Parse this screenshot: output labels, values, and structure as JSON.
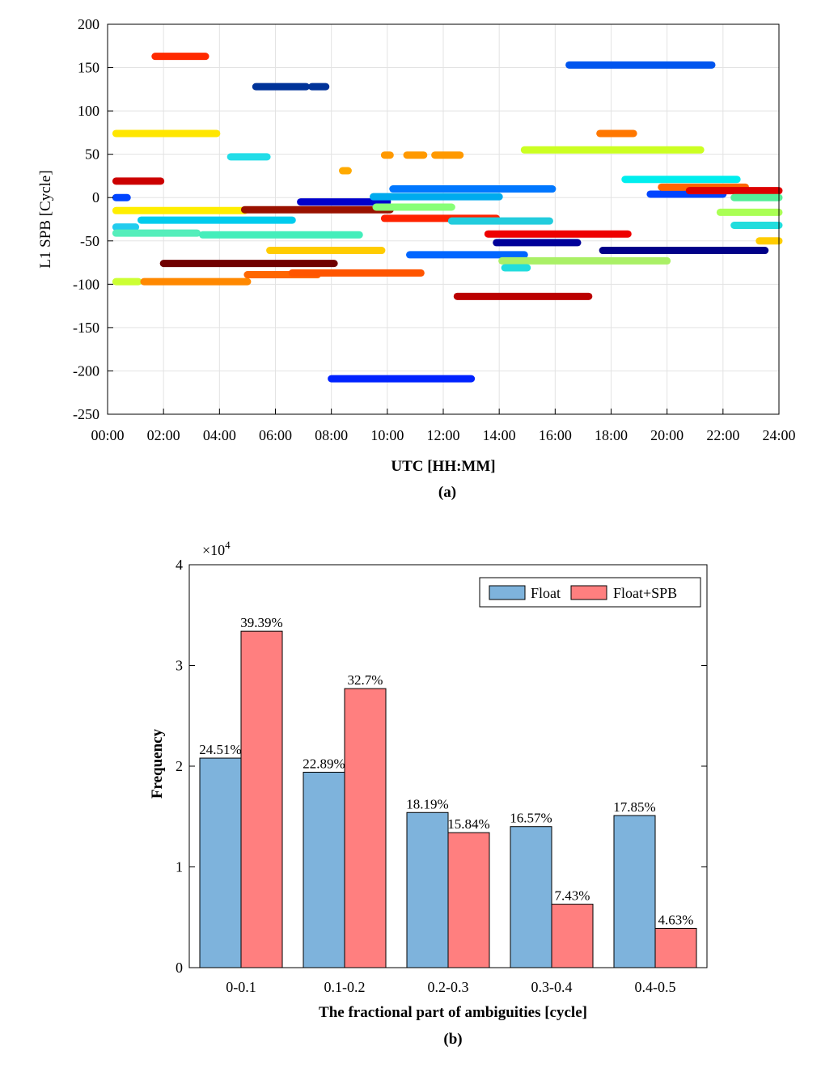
{
  "chart_data": [
    {
      "type": "line",
      "subplot_label": "(a)",
      "xlabel": "UTC [HH:MM]",
      "ylabel": "L1 SPB [Cycle]",
      "xlim": [
        0,
        24
      ],
      "ylim": [
        -250,
        200
      ],
      "x_ticks": [
        "00:00",
        "02:00",
        "04:00",
        "06:00",
        "08:00",
        "10:00",
        "12:00",
        "14:00",
        "16:00",
        "18:00",
        "20:00",
        "22:00",
        "24:00"
      ],
      "y_ticks": [
        "200",
        "150",
        "100",
        "50",
        "0",
        "-50",
        "-100",
        "-150",
        "-200",
        "-250"
      ],
      "grid": true,
      "x_unit": "hours UTC",
      "series": [
        {
          "color": "#ff2a00",
          "segments": [
            [
              1.7,
              3.5,
              163
            ]
          ]
        },
        {
          "color": "#003399",
          "segments": [
            [
              5.3,
              7.1,
              128
            ],
            [
              7.3,
              7.8,
              128
            ]
          ]
        },
        {
          "color": "#ffe600",
          "segments": [
            [
              0.3,
              3.9,
              74
            ]
          ]
        },
        {
          "color": "#22dde8",
          "segments": [
            [
              4.4,
              5.7,
              47
            ]
          ]
        },
        {
          "color": "#cc0000",
          "segments": [
            [
              0.3,
              1.9,
              19
            ]
          ]
        },
        {
          "color": "#0044ff",
          "segments": [
            [
              0.3,
              0.7,
              0
            ]
          ]
        },
        {
          "color": "#ffee00",
          "segments": [
            [
              0.3,
              4.9,
              -15
            ]
          ]
        },
        {
          "color": "#22ccee",
          "segments": [
            [
              0.3,
              1.0,
              -34
            ]
          ]
        },
        {
          "color": "#00ccee",
          "segments": [
            [
              1.2,
              6.6,
              -26
            ]
          ]
        },
        {
          "color": "#55eebb",
          "segments": [
            [
              0.3,
              3.2,
              -41
            ]
          ]
        },
        {
          "color": "#44eebb",
          "segments": [
            [
              3.4,
              9.0,
              -43
            ]
          ]
        },
        {
          "color": "#700000",
          "segments": [
            [
              2.0,
              8.1,
              -76
            ]
          ]
        },
        {
          "color": "#ccff33",
          "segments": [
            [
              0.3,
              1.1,
              -97
            ]
          ]
        },
        {
          "color": "#ff8800",
          "segments": [
            [
              1.3,
              5.0,
              -97
            ]
          ]
        },
        {
          "color": "#ff6600",
          "segments": [
            [
              5.0,
              7.5,
              -89
            ]
          ]
        },
        {
          "color": "#ff5500",
          "segments": [
            [
              6.6,
              11.2,
              -87
            ]
          ]
        },
        {
          "color": "#ffcc00",
          "segments": [
            [
              5.8,
              9.8,
              -61
            ]
          ]
        },
        {
          "color": "#991100",
          "segments": [
            [
              4.9,
              10.1,
              -14
            ]
          ]
        },
        {
          "color": "#0000cc",
          "segments": [
            [
              6.9,
              10.0,
              -5
            ]
          ]
        },
        {
          "color": "#88ff77",
          "segments": [
            [
              9.6,
              12.3,
              -11
            ]
          ]
        },
        {
          "color": "#ffaa00",
          "segments": [
            [
              8.4,
              8.6,
              31
            ]
          ]
        },
        {
          "color": "#ff9900",
          "segments": [
            [
              9.9,
              10.1,
              49
            ],
            [
              10.7,
              11.3,
              49
            ],
            [
              11.7,
              12.6,
              49
            ]
          ]
        },
        {
          "color": "#0077ff",
          "segments": [
            [
              10.2,
              15.9,
              10
            ]
          ]
        },
        {
          "color": "#00aaee",
          "segments": [
            [
              9.5,
              14.0,
              1
            ]
          ]
        },
        {
          "color": "#ff2200",
          "segments": [
            [
              9.9,
              13.9,
              -24
            ]
          ]
        },
        {
          "color": "#22ccdd",
          "segments": [
            [
              12.3,
              15.8,
              -27
            ]
          ]
        },
        {
          "color": "#0066ff",
          "segments": [
            [
              10.8,
              14.9,
              -66
            ]
          ]
        },
        {
          "color": "#0022ff",
          "segments": [
            [
              8.0,
              13.0,
              -209
            ]
          ]
        },
        {
          "color": "#bb0000",
          "segments": [
            [
              12.5,
              17.2,
              -114
            ]
          ]
        },
        {
          "color": "#ee0000",
          "segments": [
            [
              13.6,
              18.6,
              -42
            ]
          ]
        },
        {
          "color": "#000099",
          "segments": [
            [
              13.9,
              16.8,
              -52
            ]
          ]
        },
        {
          "color": "#aaf066",
          "segments": [
            [
              14.1,
              20.0,
              -73
            ]
          ]
        },
        {
          "color": "#22dddd",
          "segments": [
            [
              14.2,
              15.0,
              -81
            ]
          ]
        },
        {
          "color": "#ccff22",
          "segments": [
            [
              14.9,
              21.2,
              55
            ]
          ]
        },
        {
          "color": "#0055ee",
          "segments": [
            [
              16.5,
              21.6,
              153
            ]
          ]
        },
        {
          "color": "#ff7700",
          "segments": [
            [
              17.6,
              18.8,
              74
            ]
          ]
        },
        {
          "color": "#00eeee",
          "segments": [
            [
              18.5,
              22.5,
              21
            ]
          ]
        },
        {
          "color": "#0044ff",
          "segments": [
            [
              19.4,
              22.0,
              4
            ]
          ]
        },
        {
          "color": "#ff6600",
          "segments": [
            [
              19.8,
              22.8,
              12
            ]
          ]
        },
        {
          "color": "#dd0000",
          "segments": [
            [
              20.8,
              24.0,
              8
            ]
          ]
        },
        {
          "color": "#55ee99",
          "segments": [
            [
              22.4,
              24.0,
              0
            ]
          ]
        },
        {
          "color": "#aaff55",
          "segments": [
            [
              21.9,
              24.0,
              -17
            ]
          ]
        },
        {
          "color": "#22dddd",
          "segments": [
            [
              22.4,
              24.0,
              -32
            ]
          ]
        },
        {
          "color": "#000088",
          "segments": [
            [
              17.7,
              23.5,
              -61
            ]
          ]
        },
        {
          "color": "#ffcc00",
          "segments": [
            [
              23.3,
              24.0,
              -50
            ]
          ]
        }
      ]
    },
    {
      "type": "bar",
      "subplot_label": "(b)",
      "xlabel": "The fractional part of ambiguities [cycle]",
      "ylabel": "Frequency",
      "y_multiplier": "×10",
      "y_multiplier_exp": "4",
      "ylim": [
        0,
        40000
      ],
      "y_ticks": [
        "0",
        "1",
        "2",
        "3",
        "4"
      ],
      "categories": [
        "0-0.1",
        "0.1-0.2",
        "0.2-0.3",
        "0.3-0.4",
        "0.4-0.5"
      ],
      "legend_position": "top-right",
      "series": [
        {
          "name": "Float",
          "color": "#7eb3dc",
          "values": [
            20800,
            19400,
            15400,
            14000,
            15100
          ],
          "labels": [
            "24.51%",
            "22.89%",
            "18.19%",
            "16.57%",
            "17.85%"
          ]
        },
        {
          "name": "Float+SPB",
          "color": "#ff7f7f",
          "values": [
            33400,
            27700,
            13400,
            6300,
            3900
          ],
          "labels": [
            "39.39%",
            "32.7%",
            "15.84%",
            "7.43%",
            "4.63%"
          ]
        }
      ]
    }
  ]
}
